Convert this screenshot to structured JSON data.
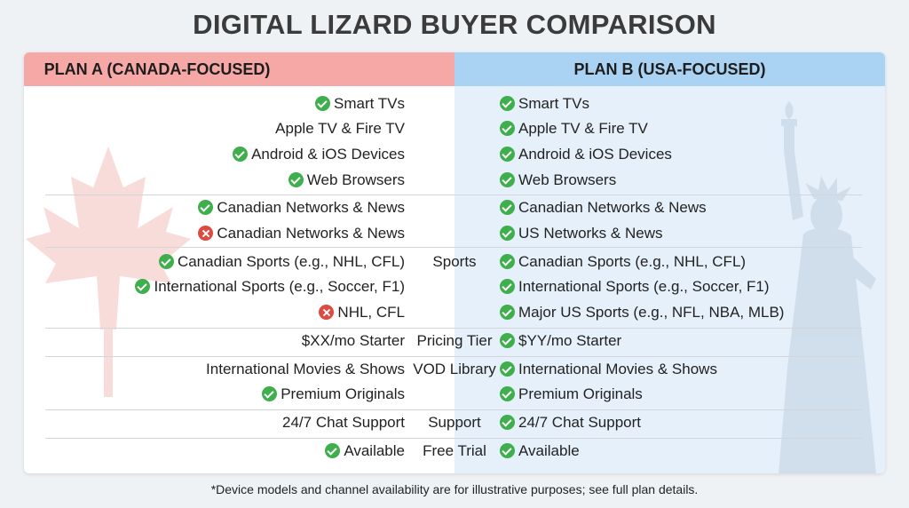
{
  "title": "DIGITAL LIZARD BUYER COMPARISON",
  "plan_a": {
    "header": "PLAN A (CANADA-FOCUSED)",
    "color": "#f5a8a6"
  },
  "plan_b": {
    "header": "PLAN B (USA-FOCUSED)",
    "color": "#aad3f3"
  },
  "rows": [
    {
      "a": {
        "icon": "check",
        "text": "Smart TVs"
      },
      "mid": "",
      "b": {
        "icon": "check",
        "text": "Smart TVs"
      }
    },
    {
      "a": {
        "icon": "none",
        "text": "Apple TV & Fire TV"
      },
      "mid": "",
      "b": {
        "icon": "check",
        "text": "Apple TV & Fire TV"
      }
    },
    {
      "a": {
        "icon": "check",
        "text": "Android & iOS Devices"
      },
      "mid": "",
      "b": {
        "icon": "check",
        "text": "Android & iOS Devices"
      }
    },
    {
      "a": {
        "icon": "check",
        "text": "Web Browsers"
      },
      "mid": "",
      "b": {
        "icon": "check",
        "text": "Web Browsers"
      }
    },
    {
      "a": {
        "icon": "check",
        "text": "Canadian Networks & News"
      },
      "mid": "",
      "b": {
        "icon": "check",
        "text": "Canadian Networks & News"
      }
    },
    {
      "a": {
        "icon": "cross",
        "text": "Canadian Networks & News"
      },
      "mid": "",
      "b": {
        "icon": "check",
        "text": "US Networks & News"
      }
    },
    {
      "a": {
        "icon": "check",
        "text": "Canadian Sports (e.g., NHL, CFL)"
      },
      "mid": "Sports",
      "b": {
        "icon": "check",
        "text": "Canadian Sports (e.g., NHL, CFL)"
      }
    },
    {
      "a": {
        "icon": "check",
        "text": "International Sports (e.g., Soccer, F1)"
      },
      "mid": "",
      "b": {
        "icon": "check",
        "text": "International Sports (e.g., Soccer, F1)"
      }
    },
    {
      "a": {
        "icon": "cross",
        "text": "NHL, CFL"
      },
      "mid": "",
      "b": {
        "icon": "check",
        "text": "Major US Sports (e.g., NFL, NBA, MLB)"
      }
    },
    {
      "a": {
        "icon": "none",
        "text": "$XX/mo Starter"
      },
      "mid": "Pricing Tier",
      "b": {
        "icon": "check",
        "text": "$YY/mo Starter"
      }
    },
    {
      "a": {
        "icon": "none",
        "text": "International Movies & Shows"
      },
      "mid": "VOD Library",
      "b": {
        "icon": "check",
        "text": "International Movies & Shows"
      }
    },
    {
      "a": {
        "icon": "check",
        "text": "Premium Originals"
      },
      "mid": "",
      "b": {
        "icon": "check",
        "text": "Premium Originals"
      }
    },
    {
      "a": {
        "icon": "none",
        "text": "24/7 Chat Support"
      },
      "mid": "Support",
      "b": {
        "icon": "check",
        "text": "24/7 Chat Support"
      }
    },
    {
      "a": {
        "icon": "check",
        "text": "Available"
      },
      "mid": "Free Trial",
      "b": {
        "icon": "check",
        "text": "Available"
      }
    }
  ],
  "footnote": "*Device models and channel availability are for illustrative purposes; see full plan details.",
  "decor": {
    "left_art": "maple-leaf",
    "right_art": "statue-of-liberty"
  }
}
